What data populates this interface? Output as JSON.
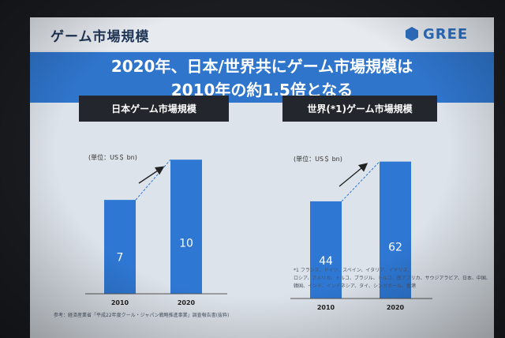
{
  "slide": {
    "title": "ゲーム市場規模",
    "logo_text": "GREE",
    "headline_lines": [
      "2020年、日本/世界共にゲーム市場規模は",
      "2010年の約1.5倍となる"
    ],
    "source": "参考：経済産業省「平成22年度クール・ジャパン戦略推進事業」調査報告書(抜粋)",
    "footnote": "*1 フランス、ドイツ、スペイン、イタリア、イギリス、\nロシア、アメリカ、トルコ、ブラジル、トルコ、南アフリカ、サウジアラビア、日本、中国、韓国、インド、インドネシア、タイ、シンガポール、香港"
  },
  "colors": {
    "bar": "#2e77d2",
    "headline_bg": "#2f75cc",
    "header_bg": "#23262c",
    "logo": "#2e6fc0"
  },
  "chart_data": [
    {
      "type": "bar",
      "title": "日本ゲーム市場規模",
      "unit": "(単位：US＄ bn)",
      "categories": [
        "2010",
        "2020"
      ],
      "values": [
        7,
        10
      ],
      "ylim": [
        0,
        10.6
      ]
    },
    {
      "type": "bar",
      "title": "世界(*1)ゲーム市場規模",
      "unit": "(単位：US＄ bn)",
      "categories": [
        "2010",
        "2020"
      ],
      "values": [
        44,
        62
      ],
      "ylim": [
        0,
        65.8
      ]
    }
  ]
}
